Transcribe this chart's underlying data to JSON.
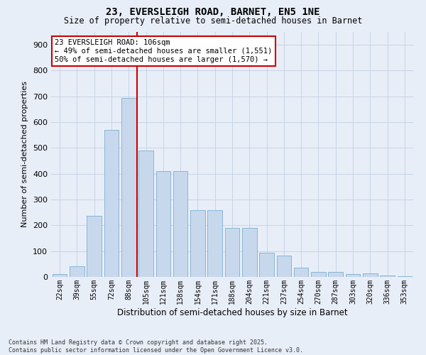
{
  "title_line1": "23, EVERSLEIGH ROAD, BARNET, EN5 1NE",
  "title_line2": "Size of property relative to semi-detached houses in Barnet",
  "xlabel": "Distribution of semi-detached houses by size in Barnet",
  "ylabel": "Number of semi-detached properties",
  "categories": [
    "22sqm",
    "39sqm",
    "55sqm",
    "72sqm",
    "88sqm",
    "105sqm",
    "121sqm",
    "138sqm",
    "154sqm",
    "171sqm",
    "188sqm",
    "204sqm",
    "221sqm",
    "237sqm",
    "254sqm",
    "270sqm",
    "287sqm",
    "303sqm",
    "320sqm",
    "336sqm",
    "353sqm"
  ],
  "values": [
    10,
    42,
    237,
    570,
    695,
    490,
    410,
    410,
    260,
    260,
    190,
    190,
    93,
    82,
    35,
    20,
    18,
    10,
    13,
    5,
    2
  ],
  "bar_color": "#c8d8ec",
  "bar_edge_color": "#7aaed0",
  "vline_color": "#cc0000",
  "annotation_text": "23 EVERSLEIGH ROAD: 106sqm\n← 49% of semi-detached houses are smaller (1,551)\n50% of semi-detached houses are larger (1,570) →",
  "annotation_box_color": "#ffffff",
  "annotation_box_edge": "#cc0000",
  "grid_color": "#c8d4e4",
  "background_color": "#e8eef8",
  "ylim": [
    0,
    950
  ],
  "yticks": [
    0,
    100,
    200,
    300,
    400,
    500,
    600,
    700,
    800,
    900
  ],
  "footnote": "Contains HM Land Registry data © Crown copyright and database right 2025.\nContains public sector information licensed under the Open Government Licence v3.0."
}
